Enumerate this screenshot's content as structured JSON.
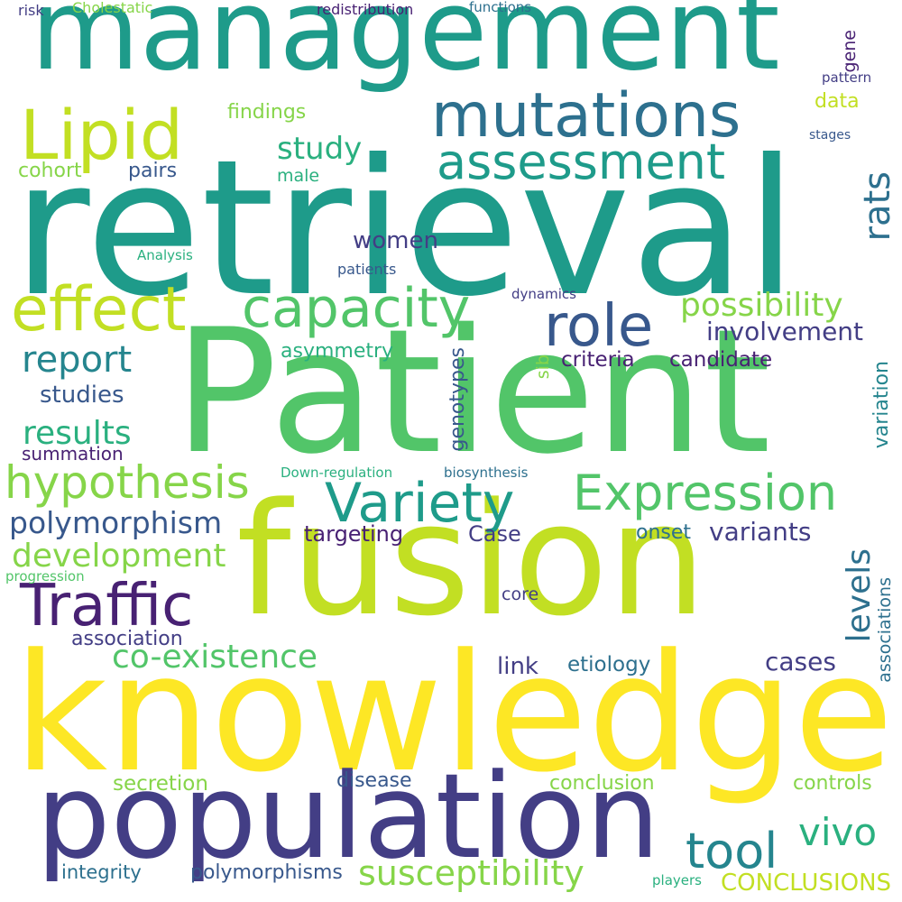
{
  "palette": {
    "yellow": "#fde725",
    "lime": "#c2df23",
    "lightgreen": "#86d549",
    "green": "#52c569",
    "seagreen": "#2ab07f",
    "teal": "#1e9b8a",
    "tealblue": "#25858e",
    "blue": "#2d708e",
    "slateblue": "#38588c",
    "indigo": "#433e85",
    "purple": "#482173"
  },
  "words": [
    {
      "text": "management",
      "color": "#1e9b8a"
    },
    {
      "text": "retrieval",
      "color": "#1e9b8a"
    },
    {
      "text": "Patient",
      "color": "#52c569"
    },
    {
      "text": "fusion",
      "color": "#c2df23"
    },
    {
      "text": "knowledge",
      "color": "#fde725"
    },
    {
      "text": "population",
      "color": "#433e85"
    },
    {
      "text": "mutations",
      "color": "#2d708e"
    },
    {
      "text": "Lipid",
      "color": "#c2df23"
    },
    {
      "text": "assessment",
      "color": "#1e9b8a"
    },
    {
      "text": "effect",
      "color": "#c2df23"
    },
    {
      "text": "capacity",
      "color": "#52c569"
    },
    {
      "text": "role",
      "color": "#38588c"
    },
    {
      "text": "Expression",
      "color": "#52c569"
    },
    {
      "text": "Variety",
      "color": "#1e9b8a"
    },
    {
      "text": "Traffic",
      "color": "#482173"
    },
    {
      "text": "hypothesis",
      "color": "#86d549"
    },
    {
      "text": "tool",
      "color": "#25858e"
    },
    {
      "text": "susceptibility",
      "color": "#86d549"
    },
    {
      "text": "co-existence",
      "color": "#52c569"
    },
    {
      "text": "polymorphism",
      "color": "#38588c"
    },
    {
      "text": "development",
      "color": "#86d549"
    },
    {
      "text": "vivo",
      "color": "#2ab07f"
    },
    {
      "text": "levels",
      "color": "#2d708e"
    },
    {
      "text": "report",
      "color": "#25858e"
    },
    {
      "text": "results",
      "color": "#2ab07f"
    },
    {
      "text": "possibility",
      "color": "#86d549"
    },
    {
      "text": "study",
      "color": "#2ab07f"
    },
    {
      "text": "rats",
      "color": "#2d708e"
    },
    {
      "text": "women",
      "color": "#433e85"
    },
    {
      "text": "involvement",
      "color": "#433e85"
    },
    {
      "text": "studies",
      "color": "#38588c"
    },
    {
      "text": "variants",
      "color": "#433e85"
    },
    {
      "text": "cases",
      "color": "#433e85"
    },
    {
      "text": "CONCLUSIONS",
      "color": "#c2df23"
    },
    {
      "text": "Case",
      "color": "#433e85"
    },
    {
      "text": "targeting",
      "color": "#482173"
    },
    {
      "text": "criteria",
      "color": "#482173"
    },
    {
      "text": "candidate",
      "color": "#482173"
    },
    {
      "text": "link",
      "color": "#433e85"
    },
    {
      "text": "etiology",
      "color": "#2d708e"
    },
    {
      "text": "polymorphisms",
      "color": "#38588c"
    },
    {
      "text": "findings",
      "color": "#86d549"
    },
    {
      "text": "cohort",
      "color": "#86d549"
    },
    {
      "text": "pairs",
      "color": "#38588c"
    },
    {
      "text": "asymmetry",
      "color": "#2ab07f"
    },
    {
      "text": "variation",
      "color": "#25858e"
    },
    {
      "text": "association",
      "color": "#433e85"
    },
    {
      "text": "onset",
      "color": "#2d708e"
    },
    {
      "text": "summation",
      "color": "#482173"
    },
    {
      "text": "secretion",
      "color": "#86d549"
    },
    {
      "text": "disease",
      "color": "#38588c"
    },
    {
      "text": "conclusion",
      "color": "#86d549"
    },
    {
      "text": "controls",
      "color": "#86d549"
    },
    {
      "text": "integrity",
      "color": "#2d708e"
    },
    {
      "text": "genotypes",
      "color": "#38588c"
    },
    {
      "text": "data",
      "color": "#c2df23"
    },
    {
      "text": "male",
      "color": "#2ab07f"
    },
    {
      "text": "core",
      "color": "#433e85"
    },
    {
      "text": "associations",
      "color": "#2d708e"
    },
    {
      "text": "gene",
      "color": "#482173"
    },
    {
      "text": "sib",
      "color": "#86d549"
    },
    {
      "text": "patients",
      "color": "#38588c"
    },
    {
      "text": "dynamics",
      "color": "#433e85"
    },
    {
      "text": "pattern",
      "color": "#433e85"
    },
    {
      "text": "stages",
      "color": "#38588c"
    },
    {
      "text": "Analysis",
      "color": "#2ab07f"
    },
    {
      "text": "Down-regulation",
      "color": "#2ab07f"
    },
    {
      "text": "biosynthesis",
      "color": "#2d708e"
    },
    {
      "text": "redistribution",
      "color": "#482173"
    },
    {
      "text": "functions",
      "color": "#2d708e"
    },
    {
      "text": "Cholestatic",
      "color": "#86d549"
    },
    {
      "text": "risk",
      "color": "#433e85"
    },
    {
      "text": "progression",
      "color": "#52c569"
    },
    {
      "text": "players",
      "color": "#2ab07f"
    }
  ]
}
